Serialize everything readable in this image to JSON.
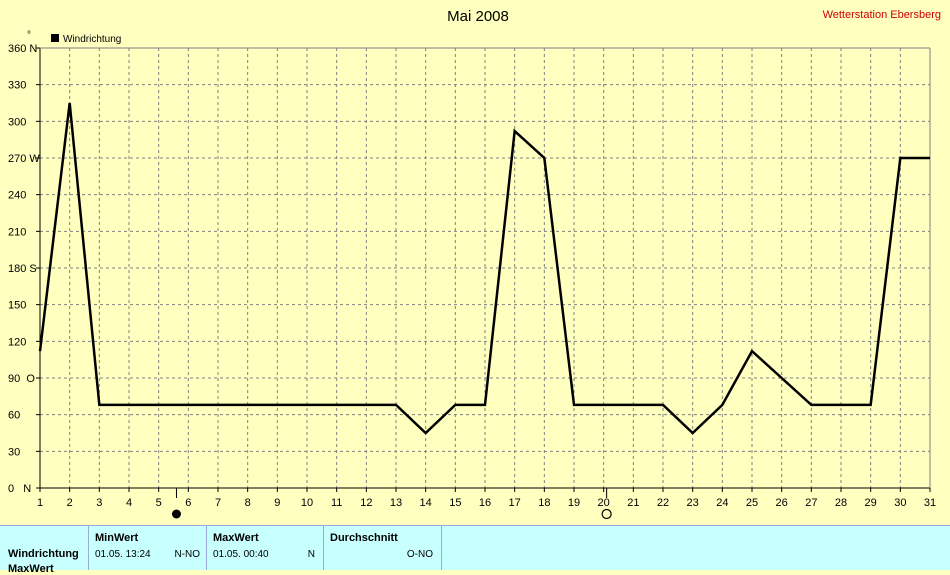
{
  "header": {
    "title": "Mai 2008",
    "station": "Wetterstation Ebersberg",
    "degree_symbol": "°"
  },
  "colors": {
    "background": "#ffffc0",
    "line": "#000000",
    "grid": "#808080",
    "station": "#cc0000",
    "panel": "#c8ffff"
  },
  "chart_data": {
    "type": "line",
    "title": "Mai 2008",
    "xlabel": "",
    "ylabel": "°",
    "xlim": [
      1,
      31
    ],
    "ylim": [
      0,
      360
    ],
    "grid": true,
    "legend_position": "top-left",
    "x_ticks": [
      "1",
      "2",
      "3",
      "4",
      "5",
      "6",
      "7",
      "8",
      "9",
      "10",
      "11",
      "12",
      "13",
      "14",
      "15",
      "16",
      "17",
      "18",
      "19",
      "20",
      "21",
      "22",
      "23",
      "24",
      "25",
      "26",
      "27",
      "28",
      "29",
      "30",
      "31"
    ],
    "y_ticks": [
      {
        "value": 0,
        "label": "0   N"
      },
      {
        "value": 30,
        "label": "30"
      },
      {
        "value": 60,
        "label": "60"
      },
      {
        "value": 90,
        "label": "90  O"
      },
      {
        "value": 120,
        "label": "120"
      },
      {
        "value": 150,
        "label": "150"
      },
      {
        "value": 180,
        "label": "180 S"
      },
      {
        "value": 210,
        "label": "210"
      },
      {
        "value": 240,
        "label": "240"
      },
      {
        "value": 270,
        "label": "270 W"
      },
      {
        "value": 300,
        "label": "300"
      },
      {
        "value": 330,
        "label": "330"
      },
      {
        "value": 360,
        "label": "360 N"
      }
    ],
    "series": [
      {
        "name": "Windrichtung",
        "x": [
          1,
          2,
          3,
          4,
          5,
          6,
          7,
          8,
          9,
          10,
          11,
          12,
          13,
          14,
          15,
          16,
          17,
          18,
          19,
          20,
          21,
          22,
          23,
          24,
          25,
          26,
          27,
          28,
          29,
          30,
          31
        ],
        "values": [
          112,
          315,
          68,
          68,
          68,
          68,
          68,
          68,
          68,
          68,
          68,
          68,
          68,
          45,
          68,
          68,
          292,
          270,
          68,
          68,
          68,
          68,
          45,
          68,
          112,
          90,
          68,
          68,
          68,
          270,
          270
        ]
      }
    ],
    "annotations": [
      {
        "type": "new-moon",
        "x": 5.6
      },
      {
        "type": "full-moon",
        "x": 20.1
      }
    ]
  },
  "stats": {
    "headers": [
      "MinWert",
      "MaxWert",
      "Durchschnitt"
    ],
    "rows": [
      {
        "label": "Windrichtung",
        "min": "01.05.  13:24",
        "min_dir": "N-NO",
        "max": "01.05.  00:40",
        "max_dir": "N",
        "avg": "O-NO"
      },
      {
        "label": "MaxWert"
      }
    ]
  }
}
